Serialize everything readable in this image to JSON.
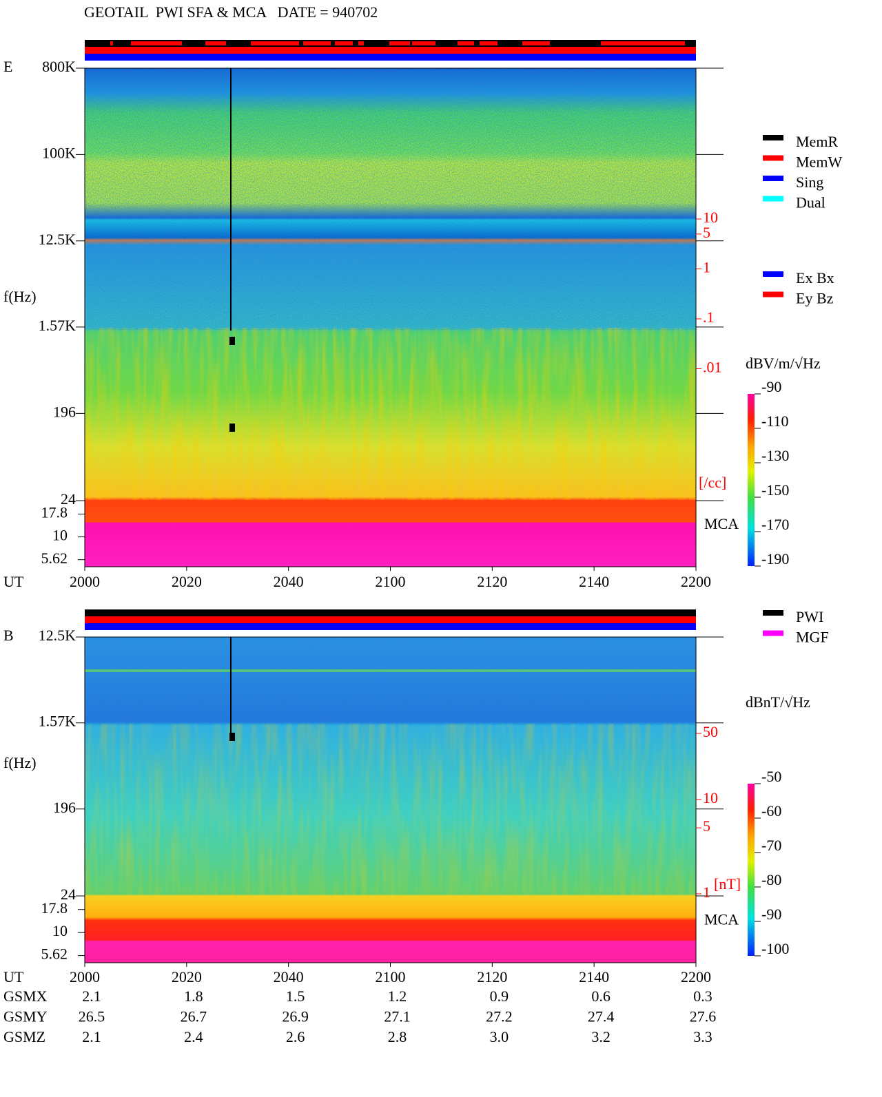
{
  "header": {
    "title": "GEOTAIL  PWI SFA & MCA   DATE = 940702"
  },
  "chart_data": [
    {
      "type": "spectrogram",
      "panel_label": "E",
      "y_label": "f(Hz)",
      "x_label": "UT",
      "xticks": [
        "2000",
        "2020",
        "2040",
        "2100",
        "2120",
        "2140",
        "2200"
      ],
      "ylim": [
        24,
        800000
      ],
      "log_y": true,
      "yticks": [
        {
          "value": 800000,
          "label": "800K"
        },
        {
          "value": 100000,
          "label": "100K"
        },
        {
          "value": 12500,
          "label": "12.5K"
        },
        {
          "value": 1570,
          "label": "1.57K"
        },
        196,
        24
      ],
      "mca_label": "MCA",
      "mca_ylim": [
        4.7,
        25
      ],
      "mca_yticks": [
        17.8,
        10,
        5.62
      ],
      "y2lim": [
        0.001,
        10
      ],
      "y2ticks": [
        10,
        5,
        1,
        {
          "value": 0.1,
          "label": ".1"
        },
        {
          "value": 0.01,
          "label": ".01"
        }
      ],
      "y2_label": "[/cc]",
      "colorbar": {
        "label": "dBV/m/√Hz",
        "lim": [
          -190,
          -90
        ],
        "ticks": [
          -90,
          -110,
          -130,
          -150,
          -170,
          -190
        ]
      },
      "legends": [
        [
          {
            "name": "MemR",
            "color": "#000000"
          },
          {
            "name": "MemW",
            "color": "#ff0000"
          },
          {
            "name": "Sing",
            "color": "#0000ff"
          },
          {
            "name": "Dual",
            "color": "#00ffff"
          }
        ],
        [
          {
            "name": "Ex Bx",
            "color": "#0000ff"
          },
          {
            "name": "Ey Bz",
            "color": "#ff0000"
          }
        ]
      ]
    },
    {
      "type": "spectrogram",
      "panel_label": "B",
      "y_label": "f(Hz)",
      "x_label": "UT",
      "xticks": [
        "2000",
        "2020",
        "2040",
        "2100",
        "2120",
        "2140",
        "2200"
      ],
      "ylim": [
        24,
        12500
      ],
      "log_y": true,
      "yticks": [
        {
          "value": 12500,
          "label": "12.5K"
        },
        {
          "value": 1570,
          "label": "1.57K"
        },
        196,
        24
      ],
      "mca_label": "MCA",
      "mca_ylim": [
        4.7,
        25
      ],
      "mca_yticks": [
        17.8,
        10,
        5.62
      ],
      "y2lim": [
        1,
        50
      ],
      "y2ticks": [
        50,
        10,
        5,
        1
      ],
      "y2_label": "[nT]",
      "colorbar": {
        "label": "dBnT/√Hz",
        "lim": [
          -100,
          -50
        ],
        "ticks": [
          -50,
          -60,
          -70,
          -80,
          -90,
          -100
        ]
      },
      "legends": [
        [
          {
            "name": "PWI",
            "color": "#000000"
          },
          {
            "name": "MGF",
            "color": "#ff00ff"
          }
        ]
      ]
    }
  ],
  "table": {
    "rows": [
      [
        "GSMX",
        "2.1",
        "1.8",
        "1.5",
        "1.2",
        "0.9",
        "0.6",
        "0.3"
      ],
      [
        "GSMY",
        "26.5",
        "26.7",
        "26.9",
        "27.1",
        "27.2",
        "27.4",
        "27.6"
      ],
      [
        "GSMZ",
        "2.1",
        "2.4",
        "2.6",
        "2.8",
        "3.0",
        "3.2",
        "3.3"
      ]
    ]
  }
}
